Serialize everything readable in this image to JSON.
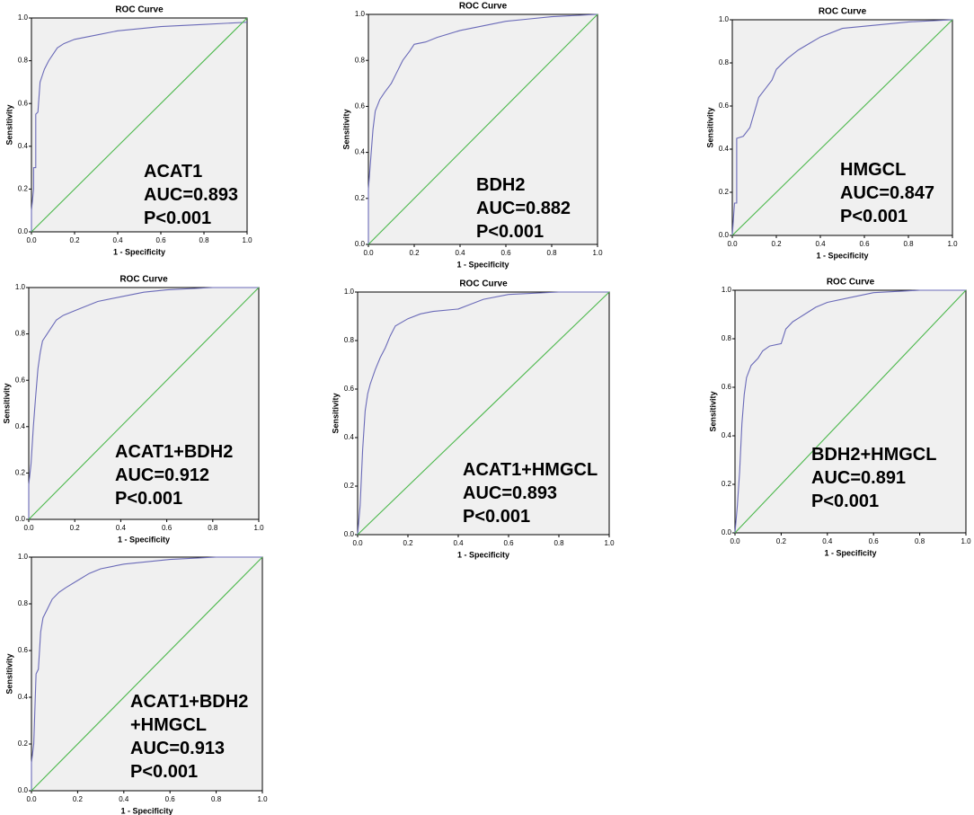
{
  "chart_data": [
    {
      "type": "line",
      "title": "ROC Curve",
      "xlabel": "1 - Specificity",
      "ylabel": "Sensitivity",
      "annotations": [
        "ACAT1",
        "AUC=0.893",
        "P<0.001"
      ],
      "xlim": [
        0,
        1
      ],
      "ylim": [
        0,
        1
      ],
      "xticks": [
        {
          "value": 0,
          "label": "0.0"
        },
        {
          "value": 0.2,
          "label": "0.2"
        },
        {
          "value": 0.4,
          "label": "0.4"
        },
        {
          "value": 0.6,
          "label": "0.6"
        },
        {
          "value": 0.8,
          "label": "0.8"
        },
        {
          "value": 1,
          "label": "1.0"
        }
      ],
      "yticks": [
        {
          "value": 0,
          "label": "0.0"
        },
        {
          "value": 0.2,
          "label": "0.2"
        },
        {
          "value": 0.4,
          "label": "0.4"
        },
        {
          "value": 0.6,
          "label": "0.6"
        },
        {
          "value": 0.8,
          "label": "0.8"
        },
        {
          "value": 1,
          "label": "1.0"
        }
      ],
      "series": [
        {
          "color": "#6a6ab8",
          "x": [
            0,
            0,
            0.01,
            0.01,
            0.02,
            0.02,
            0.03,
            0.04,
            0.05,
            0.06,
            0.08,
            0.1,
            0.12,
            0.15,
            0.2,
            0.3,
            0.4,
            0.6,
            0.8,
            1
          ],
          "values": [
            0,
            0.1,
            0.2,
            0.3,
            0.3,
            0.55,
            0.56,
            0.7,
            0.73,
            0.76,
            0.8,
            0.83,
            0.86,
            0.88,
            0.9,
            0.92,
            0.94,
            0.96,
            0.97,
            0.98
          ]
        },
        {
          "color": "#4cb84c",
          "x": [
            0,
            1
          ],
          "values": [
            0,
            1
          ]
        }
      ]
    },
    {
      "type": "line",
      "title": "ROC Curve",
      "xlabel": "1 - Specificity",
      "ylabel": "Sensitivity",
      "annotations": [
        "BDH2",
        "AUC=0.882",
        "P<0.001"
      ],
      "xlim": [
        0,
        1
      ],
      "ylim": [
        0,
        1
      ],
      "xticks": [
        {
          "value": 0,
          "label": "0.0"
        },
        {
          "value": 0.2,
          "label": "0.2"
        },
        {
          "value": 0.4,
          "label": "0.4"
        },
        {
          "value": 0.6,
          "label": "0.6"
        },
        {
          "value": 0.8,
          "label": "0.8"
        },
        {
          "value": 1,
          "label": "1.0"
        }
      ],
      "yticks": [
        {
          "value": 0,
          "label": "0.0"
        },
        {
          "value": 0.2,
          "label": "0.2"
        },
        {
          "value": 0.4,
          "label": "0.4"
        },
        {
          "value": 0.6,
          "label": "0.6"
        },
        {
          "value": 0.8,
          "label": "0.8"
        },
        {
          "value": 1,
          "label": "1.0"
        }
      ],
      "series": [
        {
          "color": "#6a6ab8",
          "x": [
            0,
            0,
            0.01,
            0.02,
            0.03,
            0.05,
            0.07,
            0.1,
            0.12,
            0.15,
            0.18,
            0.2,
            0.25,
            0.3,
            0.4,
            0.5,
            0.6,
            0.7,
            0.8,
            1
          ],
          "values": [
            0,
            0.24,
            0.37,
            0.5,
            0.58,
            0.63,
            0.66,
            0.7,
            0.74,
            0.8,
            0.84,
            0.87,
            0.88,
            0.9,
            0.93,
            0.95,
            0.97,
            0.98,
            0.99,
            1
          ]
        },
        {
          "color": "#4cb84c",
          "x": [
            0,
            1
          ],
          "values": [
            0,
            1
          ]
        }
      ]
    },
    {
      "type": "line",
      "title": "ROC Curve",
      "xlabel": "1 - Specificity",
      "ylabel": "Sensitivity",
      "annotations": [
        "HMGCL",
        "AUC=0.847",
        "P<0.001"
      ],
      "xlim": [
        0,
        1
      ],
      "ylim": [
        0,
        1
      ],
      "xticks": [
        {
          "value": 0,
          "label": "0.0"
        },
        {
          "value": 0.2,
          "label": "0.2"
        },
        {
          "value": 0.4,
          "label": "0.4"
        },
        {
          "value": 0.6,
          "label": "0.6"
        },
        {
          "value": 0.8,
          "label": "0.8"
        },
        {
          "value": 1,
          "label": "1.0"
        }
      ],
      "yticks": [
        {
          "value": 0,
          "label": "0.0"
        },
        {
          "value": 0.2,
          "label": "0.2"
        },
        {
          "value": 0.4,
          "label": "0.4"
        },
        {
          "value": 0.6,
          "label": "0.6"
        },
        {
          "value": 0.8,
          "label": "0.8"
        },
        {
          "value": 1,
          "label": "1.0"
        }
      ],
      "series": [
        {
          "color": "#6a6ab8",
          "x": [
            0,
            0.01,
            0.02,
            0.02,
            0.05,
            0.08,
            0.1,
            0.12,
            0.15,
            0.18,
            0.2,
            0.25,
            0.3,
            0.35,
            0.4,
            0.5,
            0.6,
            0.7,
            0.8,
            1
          ],
          "values": [
            0,
            0.15,
            0.15,
            0.45,
            0.46,
            0.5,
            0.57,
            0.64,
            0.68,
            0.72,
            0.77,
            0.82,
            0.86,
            0.89,
            0.92,
            0.96,
            0.97,
            0.98,
            0.99,
            1
          ]
        },
        {
          "color": "#4cb84c",
          "x": [
            0,
            1
          ],
          "values": [
            0,
            1
          ]
        }
      ]
    },
    {
      "type": "line",
      "title": "ROC Curve",
      "xlabel": "1 - Specificity",
      "ylabel": "Sensitivity",
      "annotations": [
        "ACAT1+BDH2",
        "AUC=0.912",
        "P<0.001"
      ],
      "xlim": [
        0,
        1
      ],
      "ylim": [
        0,
        1
      ],
      "xticks": [
        {
          "value": 0,
          "label": "0.0"
        },
        {
          "value": 0.2,
          "label": "0.2"
        },
        {
          "value": 0.4,
          "label": "0.4"
        },
        {
          "value": 0.6,
          "label": "0.6"
        },
        {
          "value": 0.8,
          "label": "0.8"
        },
        {
          "value": 1,
          "label": "1.0"
        }
      ],
      "yticks": [
        {
          "value": 0,
          "label": "0.0"
        },
        {
          "value": 0.2,
          "label": "0.2"
        },
        {
          "value": 0.4,
          "label": "0.4"
        },
        {
          "value": 0.6,
          "label": "0.6"
        },
        {
          "value": 0.8,
          "label": "0.8"
        },
        {
          "value": 1,
          "label": "1.0"
        }
      ],
      "series": [
        {
          "color": "#6a6ab8",
          "x": [
            0,
            0,
            0.01,
            0.02,
            0.03,
            0.04,
            0.05,
            0.06,
            0.08,
            0.1,
            0.12,
            0.15,
            0.2,
            0.25,
            0.3,
            0.4,
            0.5,
            0.6,
            0.8,
            1
          ],
          "values": [
            0,
            0.15,
            0.24,
            0.4,
            0.53,
            0.65,
            0.72,
            0.77,
            0.8,
            0.83,
            0.86,
            0.88,
            0.9,
            0.92,
            0.94,
            0.96,
            0.98,
            0.99,
            1,
            1
          ]
        },
        {
          "color": "#4cb84c",
          "x": [
            0,
            1
          ],
          "values": [
            0,
            1
          ]
        }
      ]
    },
    {
      "type": "line",
      "title": "ROC Curve",
      "xlabel": "1 - Specificity",
      "ylabel": "Sensitivity",
      "annotations": [
        "ACAT1+HMGCL",
        "AUC=0.893",
        "P<0.001"
      ],
      "xlim": [
        0,
        1
      ],
      "ylim": [
        0,
        1
      ],
      "xticks": [
        {
          "value": 0,
          "label": "0.0"
        },
        {
          "value": 0.2,
          "label": "0.2"
        },
        {
          "value": 0.4,
          "label": "0.4"
        },
        {
          "value": 0.6,
          "label": "0.6"
        },
        {
          "value": 0.8,
          "label": "0.8"
        },
        {
          "value": 1,
          "label": "1.0"
        }
      ],
      "yticks": [
        {
          "value": 0,
          "label": "0.0"
        },
        {
          "value": 0.2,
          "label": "0.2"
        },
        {
          "value": 0.4,
          "label": "0.4"
        },
        {
          "value": 0.6,
          "label": "0.6"
        },
        {
          "value": 0.8,
          "label": "0.8"
        },
        {
          "value": 1,
          "label": "1.0"
        }
      ],
      "series": [
        {
          "color": "#6a6ab8",
          "x": [
            0,
            0.01,
            0.02,
            0.03,
            0.04,
            0.05,
            0.07,
            0.09,
            0.11,
            0.13,
            0.15,
            0.2,
            0.25,
            0.3,
            0.4,
            0.45,
            0.5,
            0.6,
            0.8,
            1
          ],
          "values": [
            0,
            0.12,
            0.35,
            0.51,
            0.58,
            0.62,
            0.68,
            0.73,
            0.77,
            0.82,
            0.86,
            0.89,
            0.91,
            0.92,
            0.93,
            0.95,
            0.97,
            0.99,
            1,
            1
          ]
        },
        {
          "color": "#4cb84c",
          "x": [
            0,
            1
          ],
          "values": [
            0,
            1
          ]
        }
      ]
    },
    {
      "type": "line",
      "title": "ROC Curve",
      "xlabel": "1 - Specificity",
      "ylabel": "Sensitivity",
      "annotations": [
        "BDH2+HMGCL",
        "AUC=0.891",
        "P<0.001"
      ],
      "xlim": [
        0,
        1
      ],
      "ylim": [
        0,
        1
      ],
      "xticks": [
        {
          "value": 0,
          "label": "0.0"
        },
        {
          "value": 0.2,
          "label": "0.2"
        },
        {
          "value": 0.4,
          "label": "0.4"
        },
        {
          "value": 0.6,
          "label": "0.6"
        },
        {
          "value": 0.8,
          "label": "0.8"
        },
        {
          "value": 1,
          "label": "1.0"
        }
      ],
      "yticks": [
        {
          "value": 0,
          "label": "0.0"
        },
        {
          "value": 0.2,
          "label": "0.2"
        },
        {
          "value": 0.4,
          "label": "0.4"
        },
        {
          "value": 0.6,
          "label": "0.6"
        },
        {
          "value": 0.8,
          "label": "0.8"
        },
        {
          "value": 1,
          "label": "1.0"
        }
      ],
      "series": [
        {
          "color": "#6a6ab8",
          "x": [
            0,
            0.01,
            0.02,
            0.03,
            0.04,
            0.05,
            0.07,
            0.1,
            0.12,
            0.15,
            0.2,
            0.22,
            0.25,
            0.3,
            0.35,
            0.4,
            0.5,
            0.6,
            0.8,
            1
          ],
          "values": [
            0,
            0.11,
            0.25,
            0.45,
            0.57,
            0.64,
            0.69,
            0.72,
            0.75,
            0.77,
            0.78,
            0.84,
            0.87,
            0.9,
            0.93,
            0.95,
            0.97,
            0.99,
            1,
            1
          ]
        },
        {
          "color": "#4cb84c",
          "x": [
            0,
            1
          ],
          "values": [
            0,
            1
          ]
        }
      ]
    },
    {
      "type": "line",
      "xlabel": "1 - Specificity",
      "ylabel": "Sensitivity",
      "annotations": [
        "ACAT1+BDH2",
        "+HMGCL",
        "AUC=0.913",
        "P<0.001"
      ],
      "xlim": [
        0,
        1
      ],
      "ylim": [
        0,
        1
      ],
      "xticks": [
        {
          "value": 0,
          "label": "0.0"
        },
        {
          "value": 0.2,
          "label": "0.2"
        },
        {
          "value": 0.4,
          "label": "0.4"
        },
        {
          "value": 0.6,
          "label": "0.6"
        },
        {
          "value": 0.8,
          "label": "0.8"
        },
        {
          "value": 1,
          "label": "1.0"
        }
      ],
      "yticks": [
        {
          "value": 0,
          "label": "0.0"
        },
        {
          "value": 0.2,
          "label": "0.2"
        },
        {
          "value": 0.4,
          "label": "0.4"
        },
        {
          "value": 0.6,
          "label": "0.6"
        },
        {
          "value": 0.8,
          "label": "0.8"
        },
        {
          "value": 1,
          "label": "1.0"
        }
      ],
      "series": [
        {
          "color": "#6a6ab8",
          "x": [
            0,
            0,
            0.01,
            0.02,
            0.03,
            0.04,
            0.05,
            0.07,
            0.09,
            0.12,
            0.15,
            0.2,
            0.25,
            0.3,
            0.35,
            0.4,
            0.5,
            0.6,
            0.8,
            1
          ],
          "values": [
            0,
            0.12,
            0.2,
            0.5,
            0.52,
            0.68,
            0.74,
            0.78,
            0.82,
            0.85,
            0.87,
            0.9,
            0.93,
            0.95,
            0.96,
            0.97,
            0.98,
            0.99,
            1,
            1
          ]
        },
        {
          "color": "#4cb84c",
          "x": [
            0,
            1
          ],
          "values": [
            0,
            1
          ]
        }
      ]
    }
  ]
}
